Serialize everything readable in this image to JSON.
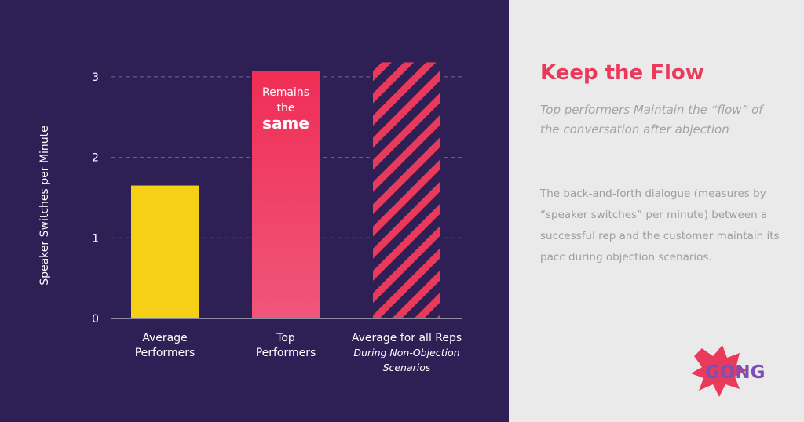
{
  "chart_data": {
    "type": "bar",
    "ylabel": "Speaker Switches per Minute",
    "ylim": [
      0,
      3.3
    ],
    "yticks": [
      0,
      1,
      2,
      3
    ],
    "grid": true,
    "categories": [
      {
        "lines": [
          "Average",
          "Performers"
        ],
        "italic_lines": []
      },
      {
        "lines": [
          "Top",
          "Performers"
        ],
        "italic_lines": []
      },
      {
        "lines": [
          "Average for all Reps"
        ],
        "italic_lines": [
          "During Non-Objection",
          "Scenarios"
        ]
      }
    ],
    "values": [
      1.65,
      3.07,
      3.18
    ],
    "bar_styles": [
      "solid",
      "gradient",
      "hatched"
    ],
    "annotation": {
      "line1": "Remains",
      "line2": "the",
      "line3": "same"
    },
    "colors": {
      "background": "#2e1f55",
      "bar_yellow": "#f5d016",
      "bar_pink_top": "#f02d55",
      "bar_pink_bottom": "#f0567a",
      "hatch": "#ea3a5b",
      "grid": "#6f6690",
      "axis": "#8a8aa0"
    }
  },
  "panel": {
    "title": "Keep the Flow",
    "subtitle": "Top performers Maintain the “flow” of the conversation after abjection",
    "body": "The back-and-forth dialogue (measures by “speaker switches” per minute) between a successful rep and the customer maintain its pacc during objection scenarios."
  },
  "logo": {
    "text": "GONG",
    "burst_color": "#ea3a5b",
    "text_color": "#7b4fb5"
  }
}
